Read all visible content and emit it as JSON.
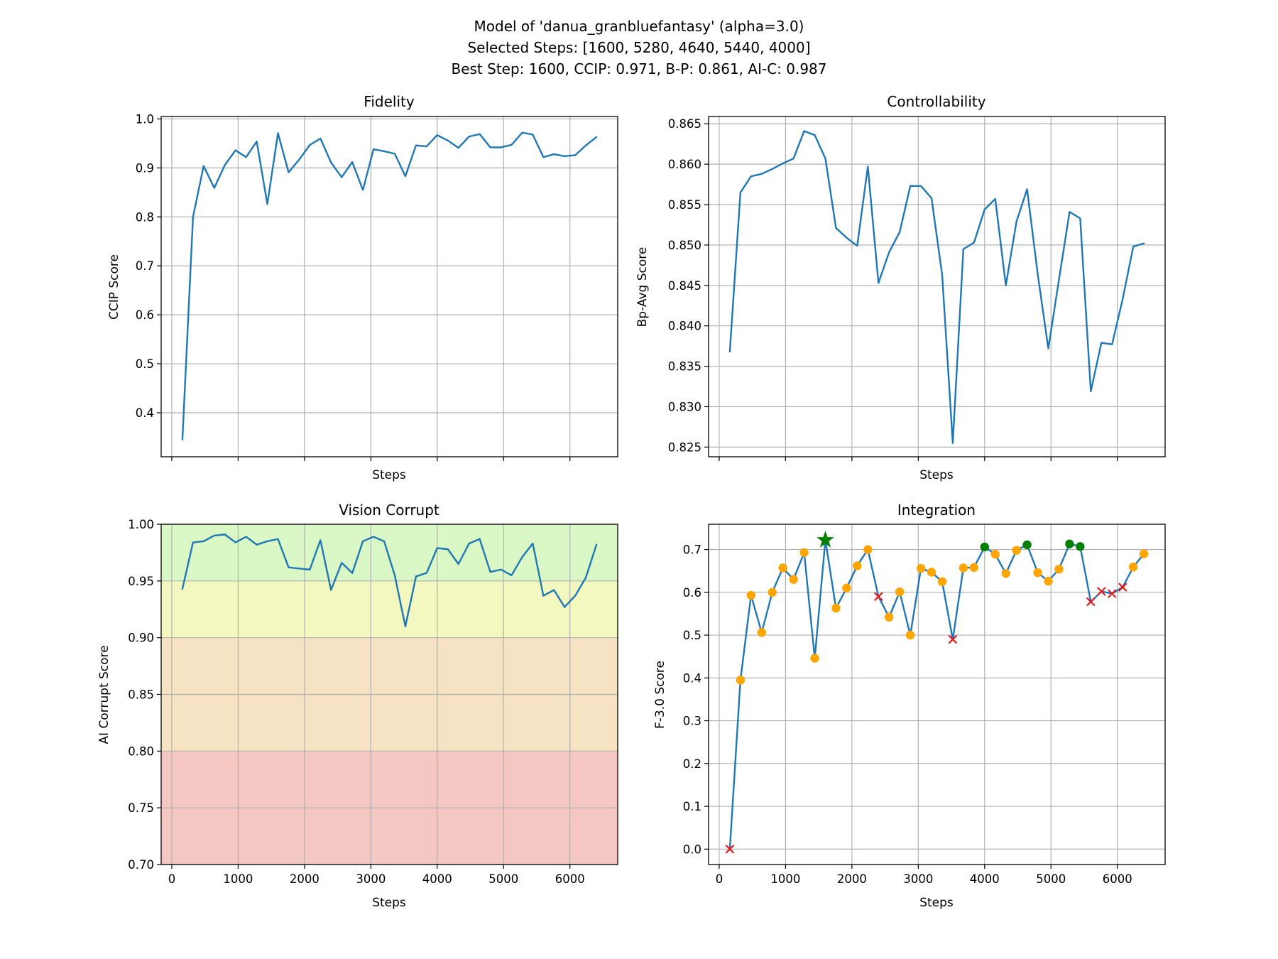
{
  "figure": {
    "title_lines": [
      "Model of 'danua_granbluefantasy' (alpha=3.0)",
      "Selected Steps: [1600, 5280, 4640, 5440, 4000]",
      "Best Step: 1600, CCIP: 0.971, B-P: 0.861, AI-C: 0.987"
    ]
  },
  "colors": {
    "line": "#1f77b4",
    "point_normal": "#ffa500",
    "point_selected": "#008000",
    "point_rejected": "#e31a1c",
    "best_star": "#008000",
    "band_good": "#daf7c6",
    "band_ok": "#f3f7c0",
    "band_warn": "#f5e3c3",
    "band_bad": "#f5c7c2"
  },
  "chart_data": [
    {
      "id": "fidelity",
      "type": "line",
      "title": "Fidelity",
      "xlabel": "Steps",
      "ylabel": "CCIP Score",
      "xlim": [
        -160,
        6720
      ],
      "ylim": [
        0.31,
        1.005
      ],
      "xticks": [
        0,
        1000,
        2000,
        3000,
        4000,
        5000,
        6000
      ],
      "show_xticklabels": false,
      "yticks": [
        0.4,
        0.5,
        0.6,
        0.7,
        0.8,
        0.9,
        1.0
      ],
      "yticklabels": [
        "0.4",
        "0.5",
        "0.6",
        "0.7",
        "0.8",
        "0.9",
        "1.0"
      ],
      "grid": true,
      "x": [
        160,
        320,
        480,
        640,
        800,
        960,
        1120,
        1280,
        1440,
        1600,
        1760,
        1920,
        2080,
        2240,
        2400,
        2560,
        2720,
        2880,
        3040,
        3200,
        3360,
        3520,
        3680,
        3840,
        4000,
        4160,
        4320,
        4480,
        4640,
        4800,
        4960,
        5120,
        5280,
        5440,
        5600,
        5760,
        5920,
        6080,
        6240,
        6400
      ],
      "values": [
        0.345,
        0.8,
        0.904,
        0.859,
        0.906,
        0.936,
        0.922,
        0.954,
        0.826,
        0.971,
        0.891,
        0.917,
        0.947,
        0.96,
        0.911,
        0.881,
        0.912,
        0.855,
        0.938,
        0.934,
        0.929,
        0.883,
        0.946,
        0.944,
        0.967,
        0.956,
        0.941,
        0.964,
        0.969,
        0.942,
        0.942,
        0.947,
        0.972,
        0.968,
        0.922,
        0.928,
        0.924,
        0.926,
        0.946,
        0.963
      ]
    },
    {
      "id": "controllability",
      "type": "line",
      "title": "Controllability",
      "xlabel": "Steps",
      "ylabel": "Bp-Avg Score",
      "xlim": [
        -160,
        6720
      ],
      "ylim": [
        0.8238,
        0.8659
      ],
      "xticks": [
        0,
        1000,
        2000,
        3000,
        4000,
        5000,
        6000
      ],
      "show_xticklabels": false,
      "yticks": [
        0.825,
        0.83,
        0.835,
        0.84,
        0.845,
        0.85,
        0.855,
        0.86,
        0.865
      ],
      "yticklabels": [
        "0.825",
        "0.830",
        "0.835",
        "0.840",
        "0.845",
        "0.850",
        "0.855",
        "0.860",
        "0.865"
      ],
      "grid": true,
      "x": [
        160,
        320,
        480,
        640,
        800,
        960,
        1120,
        1280,
        1440,
        1600,
        1760,
        1920,
        2080,
        2240,
        2400,
        2560,
        2720,
        2880,
        3040,
        3200,
        3360,
        3520,
        3680,
        3840,
        4000,
        4160,
        4320,
        4480,
        4640,
        4800,
        4960,
        5120,
        5280,
        5440,
        5600,
        5760,
        5920,
        6080,
        6240,
        6400
      ],
      "values": [
        0.8368,
        0.8565,
        0.8585,
        0.8588,
        0.8594,
        0.8601,
        0.8607,
        0.8641,
        0.8636,
        0.8607,
        0.8521,
        0.8509,
        0.8499,
        0.8597,
        0.8453,
        0.8491,
        0.8516,
        0.8573,
        0.8573,
        0.8558,
        0.8463,
        0.8255,
        0.8495,
        0.8503,
        0.8544,
        0.8557,
        0.845,
        0.8529,
        0.8569,
        0.8464,
        0.8372,
        0.8457,
        0.8541,
        0.8533,
        0.8319,
        0.8379,
        0.8377,
        0.8433,
        0.8498,
        0.8502
      ]
    },
    {
      "id": "vision-corrupt",
      "type": "line",
      "title": "Vision Corrupt",
      "xlabel": "Steps",
      "ylabel": "AI Corrupt Score",
      "xlim": [
        -160,
        6720
      ],
      "ylim": [
        0.7,
        1.0
      ],
      "xticks": [
        0,
        1000,
        2000,
        3000,
        4000,
        5000,
        6000
      ],
      "xticklabels": [
        "0",
        "1000",
        "2000",
        "3000",
        "4000",
        "5000",
        "6000"
      ],
      "show_xticklabels": true,
      "yticks": [
        0.7,
        0.75,
        0.8,
        0.85,
        0.9,
        0.95,
        1.0
      ],
      "yticklabels": [
        "0.70",
        "0.75",
        "0.80",
        "0.85",
        "0.90",
        "0.95",
        "1.00"
      ],
      "grid": true,
      "bands": [
        {
          "from": 0.95,
          "to": 1.0,
          "color": "#daf7c6"
        },
        {
          "from": 0.9,
          "to": 0.95,
          "color": "#f3f7c0"
        },
        {
          "from": 0.8,
          "to": 0.9,
          "color": "#f5e3c3"
        },
        {
          "from": 0.7,
          "to": 0.8,
          "color": "#f5c7c2"
        }
      ],
      "x": [
        160,
        320,
        480,
        640,
        800,
        960,
        1120,
        1280,
        1440,
        1600,
        1760,
        1920,
        2080,
        2240,
        2400,
        2560,
        2720,
        2880,
        3040,
        3200,
        3360,
        3520,
        3680,
        3840,
        4000,
        4160,
        4320,
        4480,
        4640,
        4800,
        4960,
        5120,
        5280,
        5440,
        5600,
        5760,
        5920,
        6080,
        6240,
        6400
      ],
      "values": [
        0.943,
        0.984,
        0.985,
        0.99,
        0.991,
        0.984,
        0.989,
        0.982,
        0.985,
        0.987,
        0.962,
        0.961,
        0.96,
        0.986,
        0.942,
        0.966,
        0.957,
        0.985,
        0.989,
        0.985,
        0.955,
        0.91,
        0.954,
        0.957,
        0.979,
        0.978,
        0.965,
        0.983,
        0.987,
        0.958,
        0.96,
        0.955,
        0.971,
        0.983,
        0.937,
        0.942,
        0.927,
        0.937,
        0.953,
        0.982
      ]
    },
    {
      "id": "integration",
      "type": "line",
      "title": "Integration",
      "xlabel": "Steps",
      "ylabel": "F-3.0 Score",
      "xlim": [
        -160,
        6720
      ],
      "ylim": [
        -0.036,
        0.759
      ],
      "xticks": [
        0,
        1000,
        2000,
        3000,
        4000,
        5000,
        6000
      ],
      "xticklabels": [
        "0",
        "1000",
        "2000",
        "3000",
        "4000",
        "5000",
        "6000"
      ],
      "show_xticklabels": true,
      "yticks": [
        0.0,
        0.1,
        0.2,
        0.3,
        0.4,
        0.5,
        0.6,
        0.7
      ],
      "yticklabels": [
        "0.0",
        "0.1",
        "0.2",
        "0.3",
        "0.4",
        "0.5",
        "0.6",
        "0.7"
      ],
      "grid": true,
      "x": [
        160,
        320,
        480,
        640,
        800,
        960,
        1120,
        1280,
        1440,
        1600,
        1760,
        1920,
        2080,
        2240,
        2400,
        2560,
        2720,
        2880,
        3040,
        3200,
        3360,
        3520,
        3680,
        3840,
        4000,
        4160,
        4320,
        4480,
        4640,
        4800,
        4960,
        5120,
        5280,
        5440,
        5600,
        5760,
        5920,
        6080,
        6240,
        6400
      ],
      "values": [
        0.0,
        0.395,
        0.593,
        0.506,
        0.6,
        0.657,
        0.63,
        0.693,
        0.446,
        0.722,
        0.563,
        0.61,
        0.662,
        0.7,
        0.59,
        0.542,
        0.601,
        0.5,
        0.656,
        0.647,
        0.625,
        0.49,
        0.657,
        0.658,
        0.706,
        0.689,
        0.644,
        0.698,
        0.711,
        0.646,
        0.626,
        0.654,
        0.713,
        0.707,
        0.578,
        0.602,
        0.597,
        0.612,
        0.659,
        0.69
      ],
      "markers": [
        "x",
        "o",
        "o",
        "o",
        "o",
        "o",
        "o",
        "o",
        "o",
        "star",
        "o",
        "o",
        "o",
        "o",
        "x",
        "o",
        "o",
        "o",
        "o",
        "o",
        "o",
        "x",
        "o",
        "o",
        "sel",
        "o",
        "o",
        "o",
        "sel",
        "o",
        "o",
        "o",
        "sel",
        "sel",
        "x",
        "x",
        "x",
        "x",
        "o",
        "o"
      ]
    }
  ]
}
